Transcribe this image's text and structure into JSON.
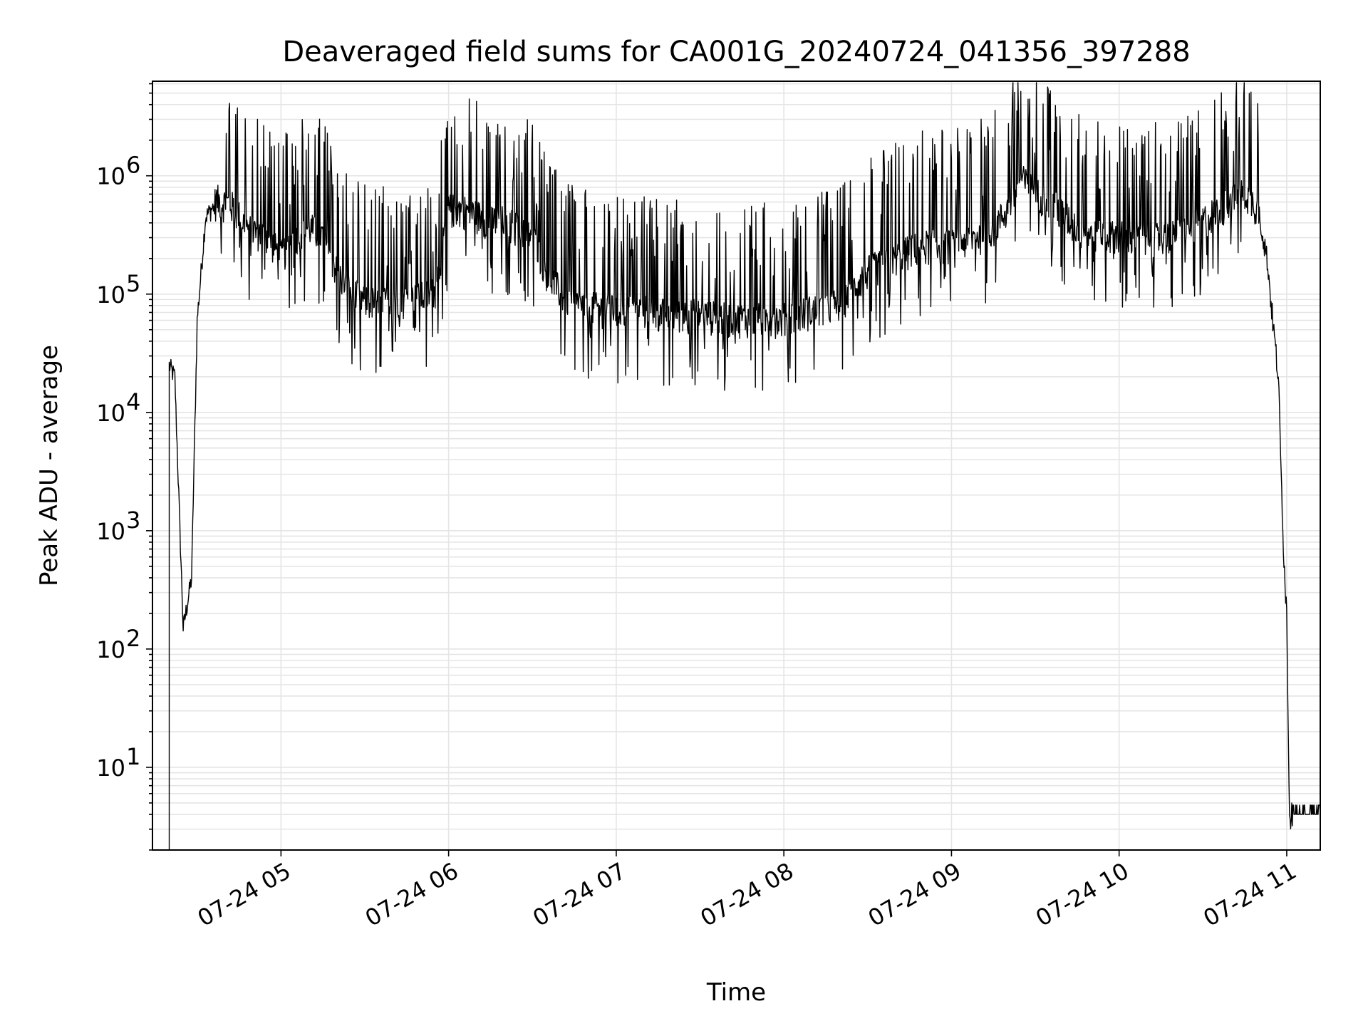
{
  "chart_data": {
    "type": "line",
    "title": "Deaveraged field sums for CA001G_20240724_041356_397288",
    "xlabel": "Time",
    "ylabel": "Peak ADU - average",
    "y_scale": "log",
    "ylim": [
      2,
      6300000
    ],
    "xlim": [
      "2024-07-24T04:14",
      "2024-07-24T11:12"
    ],
    "x_ticks": [
      {
        "time": "2024-07-24T05:00",
        "label": "07-24 05"
      },
      {
        "time": "2024-07-24T06:00",
        "label": "07-24 06"
      },
      {
        "time": "2024-07-24T07:00",
        "label": "07-24 07"
      },
      {
        "time": "2024-07-24T08:00",
        "label": "07-24 08"
      },
      {
        "time": "2024-07-24T09:00",
        "label": "07-24 09"
      },
      {
        "time": "2024-07-24T10:00",
        "label": "07-24 10"
      },
      {
        "time": "2024-07-24T11:00",
        "label": "07-24 11"
      }
    ],
    "y_ticks": [
      {
        "value": 10,
        "base": "10",
        "exp": "1"
      },
      {
        "value": 100,
        "base": "10",
        "exp": "2"
      },
      {
        "value": 1000,
        "base": "10",
        "exp": "3"
      },
      {
        "value": 10000,
        "base": "10",
        "exp": "4"
      },
      {
        "value": 100000,
        "base": "10",
        "exp": "5"
      },
      {
        "value": 1000000,
        "base": "10",
        "exp": "6"
      }
    ],
    "grid": true,
    "line_color": "#000000",
    "grid_color": "#e5e5e5",
    "series": [
      {
        "style": "noisy",
        "x": [
          "04:20",
          "04:22",
          "04:25",
          "04:28",
          "04:30",
          "04:33",
          "04:37",
          "04:42",
          "04:48",
          "04:55",
          "05:00",
          "05:05",
          "05:10",
          "05:15",
          "05:20",
          "05:25",
          "05:30",
          "05:35",
          "05:40",
          "05:45",
          "05:50",
          "05:55",
          "06:00",
          "06:05",
          "06:10",
          "06:15",
          "06:20",
          "06:25",
          "06:30",
          "06:35",
          "06:40",
          "06:45",
          "06:50",
          "07:00",
          "07:10",
          "07:20",
          "07:30",
          "07:40",
          "07:50",
          "08:00",
          "08:10",
          "08:20",
          "08:30",
          "08:40",
          "08:50",
          "09:00",
          "09:10",
          "09:15",
          "09:20",
          "09:25",
          "09:30",
          "09:35",
          "09:40",
          "09:45",
          "09:50",
          "09:55",
          "10:00",
          "10:10",
          "10:20",
          "10:30",
          "10:40",
          "10:45",
          "10:50",
          "10:53",
          "10:55",
          "10:57",
          "10:58",
          "10:59",
          "11:00",
          "11:01",
          "11:02",
          "11:12"
        ],
        "values": [
          25000,
          20000,
          150,
          400,
          60000,
          450000,
          600000,
          550000,
          350000,
          300000,
          200000,
          300000,
          350000,
          300000,
          150000,
          100000,
          85000,
          80000,
          90000,
          85000,
          90000,
          100000,
          500000,
          500000,
          450000,
          400000,
          400000,
          350000,
          300000,
          150000,
          100000,
          80000,
          75000,
          70000,
          70000,
          65000,
          65000,
          60000,
          60000,
          60000,
          70000,
          80000,
          150000,
          200000,
          250000,
          250000,
          300000,
          350000,
          500000,
          900000,
          700000,
          600000,
          450000,
          350000,
          300000,
          300000,
          300000,
          280000,
          300000,
          400000,
          600000,
          700000,
          500000,
          200000,
          60000,
          20000,
          3000,
          600,
          200,
          4,
          4,
          4
        ]
      }
    ]
  }
}
